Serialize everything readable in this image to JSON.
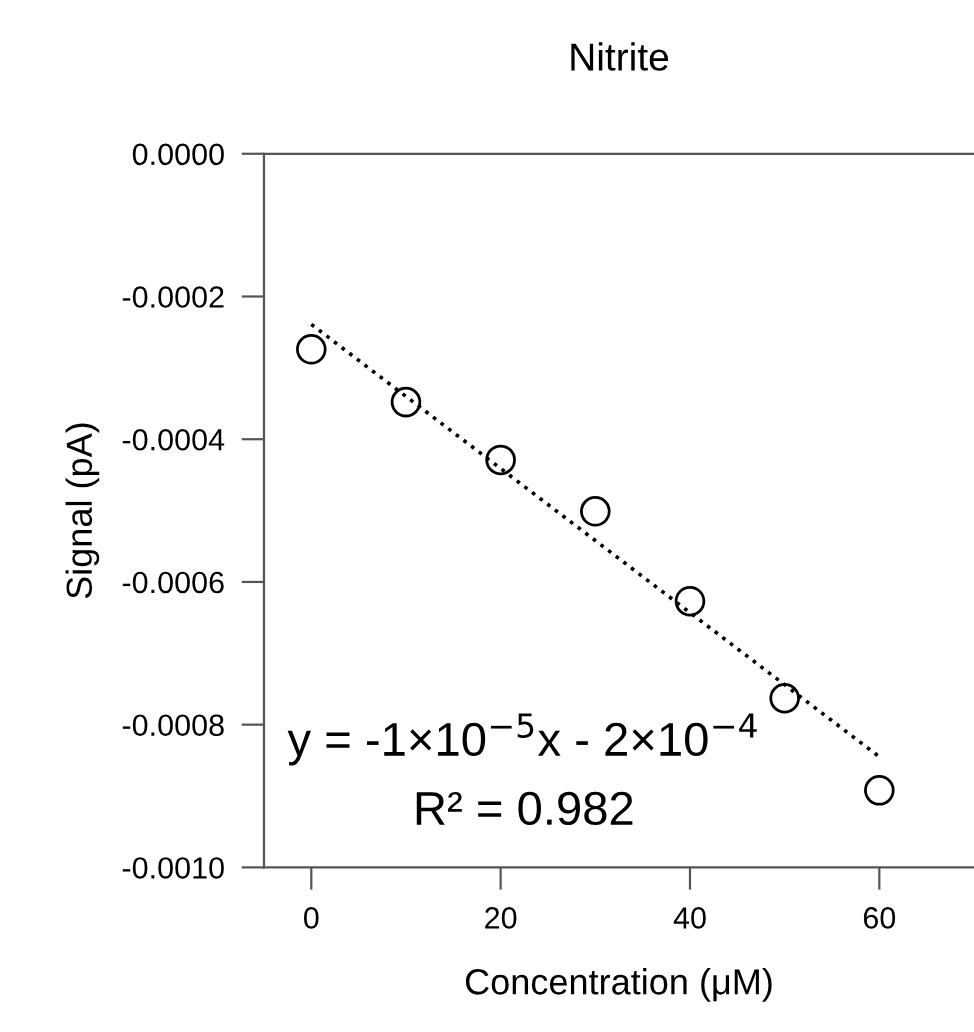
{
  "chart_data": {
    "type": "scatter",
    "title": "Nitrite",
    "xlabel": "Concentration (μM)",
    "ylabel": "Signal (pA)",
    "x": [
      0,
      10,
      20,
      30,
      40,
      50,
      60
    ],
    "series": [
      {
        "color": "#000000",
        "marker": "circle",
        "values": [
          -0.000274,
          -0.000348,
          -0.000429,
          -0.000501,
          -0.000627,
          -0.000763,
          -0.000892
        ]
      },
      {
        "type": "line",
        "color": "#000000",
        "line_style": "dotted",
        "x": [
          0,
          60
        ],
        "values": [
          -0.000239,
          -0.000845
        ]
      }
    ],
    "xlim": [
      -5,
      70
    ],
    "ylim": [
      -0.001,
      0
    ],
    "xticks": [
      0,
      20,
      40,
      60
    ],
    "yticks": [
      {
        "value": 0,
        "label": "0.0000"
      },
      {
        "value": -0.0002,
        "label": "-0.0002"
      },
      {
        "value": -0.0004,
        "label": "-0.0004"
      },
      {
        "value": -0.0006,
        "label": "-0.0006"
      },
      {
        "value": -0.0008,
        "label": "-0.0008"
      },
      {
        "value": -0.001,
        "label": "-0.0010"
      }
    ],
    "grid": false,
    "legend": false,
    "annotations": [
      "y = -1×10$^{−5}$x - 2×10$^{−4}$",
      "R² = 0.982"
    ]
  }
}
